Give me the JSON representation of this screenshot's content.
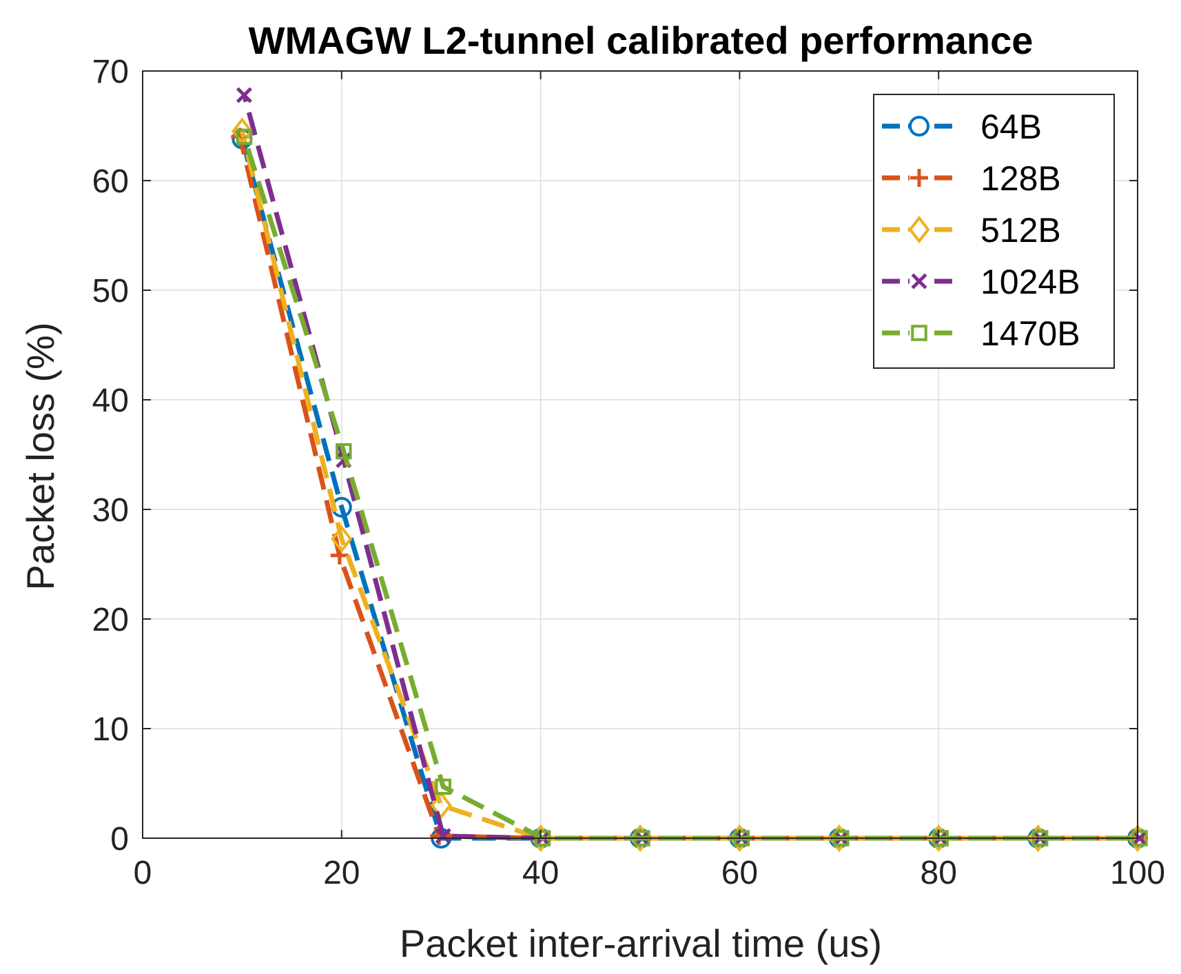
{
  "chart_data": {
    "type": "line",
    "title": "WMAGW L2-tunnel calibrated performance",
    "xlabel": "Packet inter-arrival time (us)",
    "ylabel": "Packet loss (%)",
    "xlim": [
      0,
      100
    ],
    "ylim": [
      0,
      70
    ],
    "xticks": [
      0,
      20,
      40,
      60,
      80,
      100
    ],
    "yticks": [
      0,
      10,
      20,
      30,
      40,
      50,
      60,
      70
    ],
    "grid": true,
    "legend_position": "top-right",
    "x": [
      10,
      20,
      30,
      40,
      50,
      60,
      70,
      80,
      90,
      100
    ],
    "series": [
      {
        "name": "64B",
        "color": "#0072BD",
        "marker": "circle",
        "values": [
          63.8,
          30.2,
          0,
          0,
          0,
          0,
          0,
          0,
          0,
          0
        ]
      },
      {
        "name": "128B",
        "color": "#D95319",
        "marker": "plus",
        "values": [
          64.0,
          25.8,
          0.2,
          0,
          0,
          0,
          0,
          0,
          0,
          0
        ]
      },
      {
        "name": "512B",
        "color": "#EDB120",
        "marker": "diamond",
        "values": [
          64.5,
          27.3,
          3.0,
          0,
          0,
          0,
          0,
          0,
          0,
          0
        ]
      },
      {
        "name": "1024B",
        "color": "#7E2F8E",
        "marker": "x",
        "values": [
          67.8,
          34.5,
          0.2,
          0,
          0,
          0,
          0,
          0,
          0,
          0
        ]
      },
      {
        "name": "1470B",
        "color": "#77AC30",
        "marker": "square",
        "values": [
          64.0,
          35.3,
          4.7,
          0,
          0,
          0,
          0,
          0,
          0,
          0
        ]
      }
    ]
  }
}
